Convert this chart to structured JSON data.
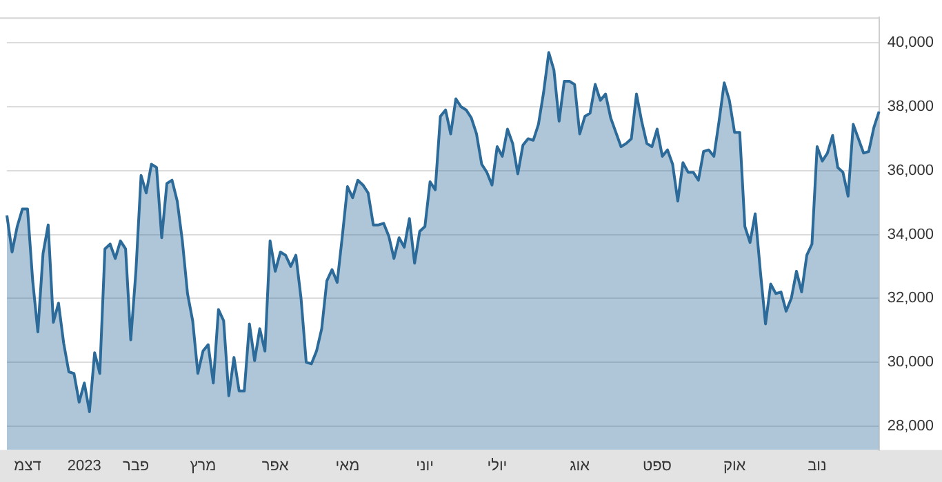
{
  "chart_data": {
    "type": "area",
    "ylim": [
      27250,
      40800
    ],
    "categories": [
      null,
      null,
      null,
      null,
      "דצמ",
      null,
      null,
      null,
      null,
      null,
      null,
      null,
      null,
      null,
      null,
      "2023",
      null,
      null,
      null,
      null,
      null,
      null,
      null,
      null,
      null,
      "פבר",
      null,
      null,
      null,
      null,
      null,
      null,
      null,
      null,
      null,
      null,
      null,
      null,
      "מרץ",
      null,
      null,
      null,
      null,
      null,
      null,
      null,
      null,
      null,
      null,
      null,
      null,
      null,
      "אפר",
      null,
      null,
      null,
      null,
      null,
      null,
      null,
      null,
      null,
      null,
      null,
      null,
      null,
      "מאי",
      null,
      null,
      null,
      null,
      null,
      null,
      null,
      null,
      null,
      null,
      null,
      null,
      null,
      null,
      "יוני",
      null,
      null,
      null,
      null,
      null,
      null,
      null,
      null,
      null,
      null,
      null,
      null,
      null,
      "יולי",
      null,
      null,
      null,
      null,
      null,
      null,
      null,
      null,
      null,
      null,
      null,
      null,
      null,
      null,
      null,
      "אוג",
      null,
      null,
      null,
      null,
      null,
      null,
      null,
      null,
      null,
      null,
      null,
      null,
      null,
      null,
      "ספט",
      null,
      null,
      null,
      null,
      null,
      null,
      null,
      null,
      null,
      null,
      null,
      null,
      null,
      null,
      "אוק",
      null,
      null,
      null,
      null,
      null,
      null,
      null,
      null,
      null,
      null,
      null,
      null,
      null,
      null,
      null,
      "נוב",
      null,
      null,
      null,
      null,
      null,
      null,
      null,
      null,
      null,
      null,
      null,
      null
    ],
    "yticks": [
      {
        "value": 28000,
        "label": "28,000"
      },
      {
        "value": 30000,
        "label": "30,000"
      },
      {
        "value": 32000,
        "label": "32,000"
      },
      {
        "value": 34000,
        "label": "34,000"
      },
      {
        "value": 36000,
        "label": "36,000"
      },
      {
        "value": 38000,
        "label": "38,000"
      },
      {
        "value": 40000,
        "label": "40,000"
      }
    ],
    "grid": "y",
    "legend": false,
    "marker": "none",
    "series": [
      {
        "color": "#2b6a99",
        "values": [
          34600,
          33450,
          34250,
          34800,
          34800,
          32550,
          30950,
          33400,
          34300,
          31250,
          31850,
          30600,
          29700,
          29650,
          28750,
          29350,
          28450,
          30300,
          29650,
          33550,
          33700,
          33250,
          33800,
          33550,
          30700,
          32850,
          35850,
          35300,
          36200,
          36100,
          33900,
          35600,
          35700,
          35050,
          33800,
          32150,
          31300,
          29650,
          30350,
          30550,
          29350,
          31650,
          31300,
          28950,
          30150,
          29100,
          29100,
          31200,
          30050,
          31050,
          30350,
          33800,
          32850,
          33450,
          33350,
          33000,
          33350,
          32000,
          30000,
          29950,
          30350,
          31050,
          32550,
          32900,
          32500,
          33950,
          35500,
          35150,
          35700,
          35550,
          35300,
          34300,
          34300,
          34350,
          33950,
          33250,
          33900,
          33600,
          34500,
          33100,
          34100,
          34250,
          35650,
          35400,
          37700,
          37900,
          37150,
          38250,
          38000,
          37900,
          37650,
          37150,
          36200,
          35950,
          35550,
          36750,
          36450,
          37300,
          36850,
          35900,
          36800,
          37000,
          36950,
          37450,
          38450,
          39700,
          39150,
          37550,
          38800,
          38800,
          38700,
          37150,
          37700,
          37800,
          38700,
          38200,
          38400,
          37650,
          37200,
          36750,
          36850,
          37000,
          38400,
          37550,
          36850,
          36750,
          37300,
          36450,
          36650,
          36200,
          35050,
          36250,
          35950,
          35950,
          35700,
          36600,
          36650,
          36450,
          37550,
          38750,
          38200,
          37200,
          37200,
          34250,
          33750,
          34650,
          32850,
          31200,
          32450,
          32150,
          32200,
          31600,
          32000,
          32850,
          32200,
          33350,
          33700,
          36750,
          36300,
          36550,
          37100,
          36100,
          35950,
          35200,
          37450,
          37000,
          36550,
          36600,
          37350,
          37850
        ]
      }
    ]
  }
}
